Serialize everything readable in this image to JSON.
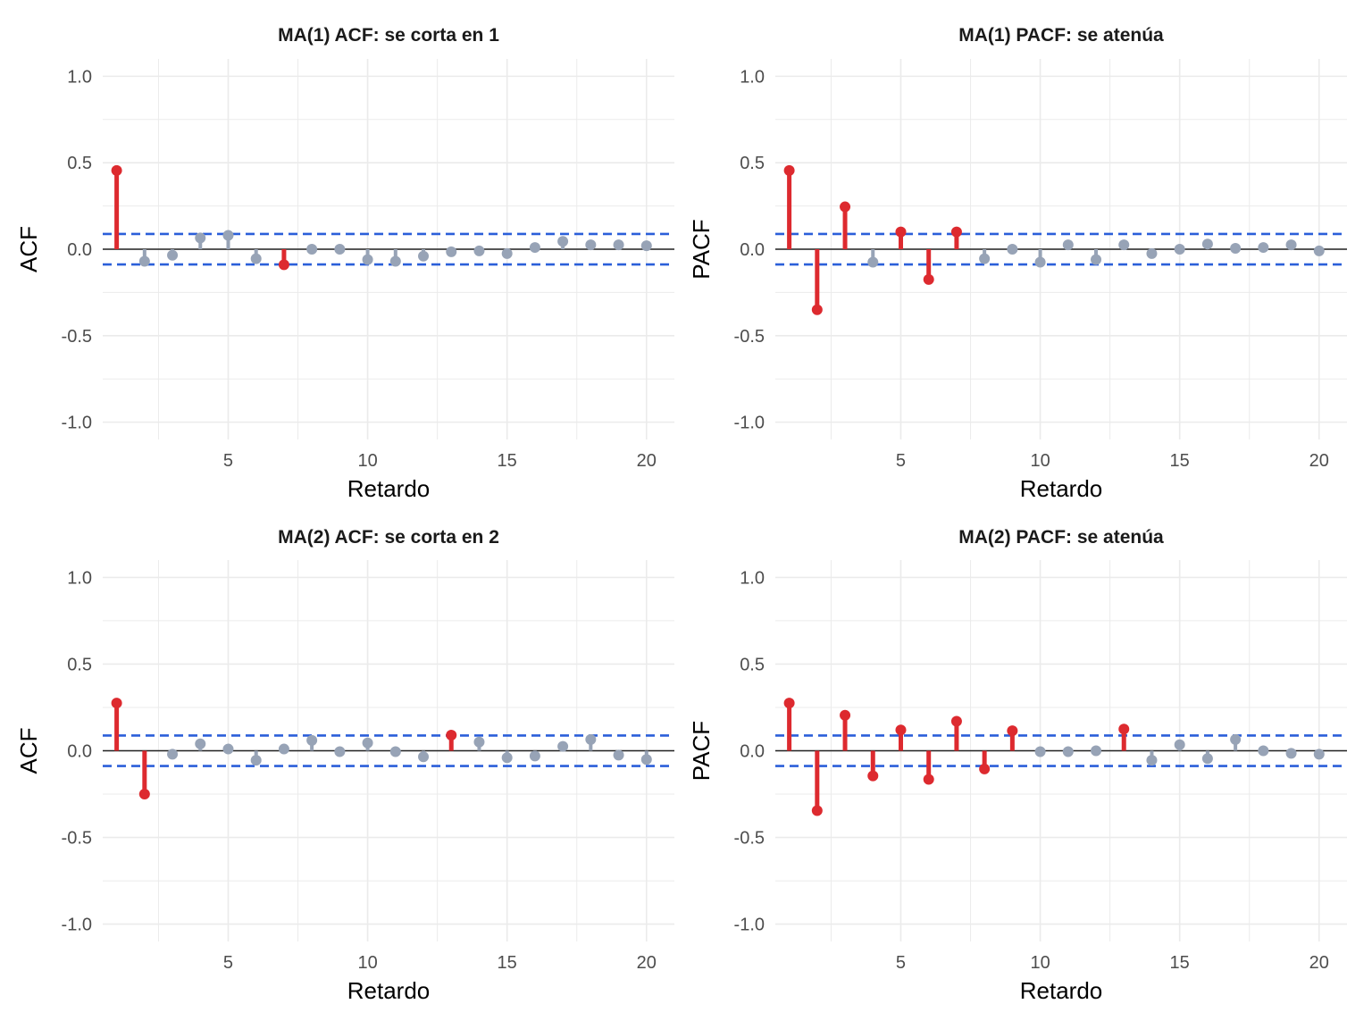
{
  "colors": {
    "significant": "#DD2A2F",
    "nonsignificant": "#97A3B6",
    "confidence": "#2B5FD9",
    "zero": "#222222",
    "grid": "#EBEBEB"
  },
  "chart_data": [
    {
      "type": "lollipop",
      "title": "MA(1) ACF: se corta en 1",
      "xlabel": "Retardo",
      "ylabel": "ACF",
      "x_ticks": [
        "5",
        "10",
        "15",
        "20"
      ],
      "y_ticks": [
        "1.0",
        "0.5",
        "0.0",
        "-0.5",
        "-1.0"
      ],
      "xlim": [
        0.5,
        21
      ],
      "ylim": [
        -1.1,
        1.1
      ],
      "confidence_band": 0.088,
      "x": [
        1,
        2,
        3,
        4,
        5,
        6,
        7,
        8,
        9,
        10,
        11,
        12,
        13,
        14,
        15,
        16,
        17,
        18,
        19,
        20
      ],
      "values": [
        0.455,
        -0.07,
        -0.035,
        0.065,
        0.08,
        -0.055,
        -0.09,
        0.0,
        0.0,
        -0.06,
        -0.07,
        -0.04,
        -0.015,
        -0.01,
        -0.025,
        0.01,
        0.045,
        0.025,
        0.025,
        0.02
      ]
    },
    {
      "type": "lollipop",
      "title": "MA(1) PACF: se atenúa",
      "xlabel": "Retardo",
      "ylabel": "PACF",
      "x_ticks": [
        "5",
        "10",
        "15",
        "20"
      ],
      "y_ticks": [
        "1.0",
        "0.5",
        "0.0",
        "-0.5",
        "-1.0"
      ],
      "xlim": [
        0.5,
        21
      ],
      "ylim": [
        -1.1,
        1.1
      ],
      "confidence_band": 0.088,
      "x": [
        1,
        2,
        3,
        4,
        5,
        6,
        7,
        8,
        9,
        10,
        11,
        12,
        13,
        14,
        15,
        16,
        17,
        18,
        19,
        20
      ],
      "values": [
        0.455,
        -0.35,
        0.245,
        -0.075,
        0.1,
        -0.175,
        0.1,
        -0.055,
        0.0,
        -0.075,
        0.025,
        -0.06,
        0.025,
        -0.025,
        0.0,
        0.03,
        0.005,
        0.01,
        0.025,
        -0.01
      ]
    },
    {
      "type": "lollipop",
      "title": "MA(2) ACF: se corta en 2",
      "xlabel": "Retardo",
      "ylabel": "ACF",
      "x_ticks": [
        "5",
        "10",
        "15",
        "20"
      ],
      "y_ticks": [
        "1.0",
        "0.5",
        "0.0",
        "-0.5",
        "-1.0"
      ],
      "xlim": [
        0.5,
        21
      ],
      "ylim": [
        -1.1,
        1.1
      ],
      "confidence_band": 0.088,
      "x": [
        1,
        2,
        3,
        4,
        5,
        6,
        7,
        8,
        9,
        10,
        11,
        12,
        13,
        14,
        15,
        16,
        17,
        18,
        19,
        20
      ],
      "values": [
        0.275,
        -0.25,
        -0.02,
        0.04,
        0.01,
        -0.055,
        0.01,
        0.06,
        -0.005,
        0.045,
        -0.005,
        -0.035,
        0.09,
        0.05,
        -0.04,
        -0.03,
        0.025,
        0.065,
        -0.025,
        -0.05
      ]
    },
    {
      "type": "lollipop",
      "title": "MA(2) PACF: se atenúa",
      "xlabel": "Retardo",
      "ylabel": "PACF",
      "x_ticks": [
        "5",
        "10",
        "15",
        "20"
      ],
      "y_ticks": [
        "1.0",
        "0.5",
        "0.0",
        "-0.5",
        "-1.0"
      ],
      "xlim": [
        0.5,
        21
      ],
      "ylim": [
        -1.1,
        1.1
      ],
      "confidence_band": 0.088,
      "x": [
        1,
        2,
        3,
        4,
        5,
        6,
        7,
        8,
        9,
        10,
        11,
        12,
        13,
        14,
        15,
        16,
        17,
        18,
        19,
        20
      ],
      "values": [
        0.275,
        -0.345,
        0.205,
        -0.145,
        0.12,
        -0.165,
        0.17,
        -0.105,
        0.115,
        -0.005,
        -0.005,
        0.0,
        0.125,
        -0.055,
        0.035,
        -0.045,
        0.065,
        0.0,
        -0.015,
        -0.02
      ]
    }
  ]
}
